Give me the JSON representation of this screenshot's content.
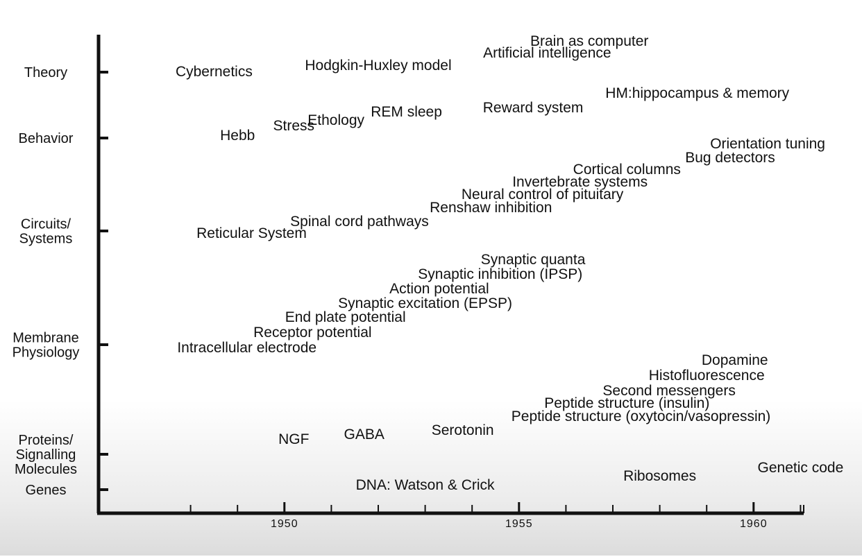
{
  "chart_data": {
    "type": "scatter",
    "title": "",
    "xlabel": "",
    "ylabel": "",
    "xlim": [
      1947,
      1962
    ],
    "x_tick_labels": [
      {
        "value": 1950,
        "label": "1950"
      },
      {
        "value": 1955,
        "label": "1955"
      },
      {
        "value": 1960,
        "label": "1960"
      }
    ],
    "y_categories": [
      {
        "id": "theory",
        "lines": [
          "Theory"
        ]
      },
      {
        "id": "behavior",
        "lines": [
          "Behavior"
        ]
      },
      {
        "id": "circuits",
        "lines": [
          "Circuits/",
          "Systems"
        ]
      },
      {
        "id": "membrane",
        "lines": [
          "Membrane",
          "Physiology"
        ]
      },
      {
        "id": "proteins",
        "lines": [
          "Proteins/",
          "Signalling",
          "Molecules"
        ]
      },
      {
        "id": "genes",
        "lines": [
          "Genes"
        ]
      }
    ],
    "events": [
      {
        "label": "Cybernetics",
        "category": "theory",
        "year": 1948.5
      },
      {
        "label": "Hodgkin-Huxley model",
        "category": "theory",
        "year": 1952.0
      },
      {
        "label": "Artificial intelligence",
        "category": "theory",
        "year": 1955.6
      },
      {
        "label": "Brain as computer",
        "category": "theory",
        "year": 1956.5
      },
      {
        "label": "HM:hippocampus & memory",
        "category": "theory",
        "year": 1958.8
      },
      {
        "label": "Hebb",
        "category": "behavior",
        "year": 1949.0
      },
      {
        "label": "Stress",
        "category": "behavior",
        "year": 1950.2
      },
      {
        "label": "Ethology",
        "category": "behavior",
        "year": 1951.1
      },
      {
        "label": "REM sleep",
        "category": "behavior",
        "year": 1952.6
      },
      {
        "label": "Reward system",
        "category": "behavior",
        "year": 1955.3
      },
      {
        "label": "Reticular System",
        "category": "circuits",
        "year": 1949.3
      },
      {
        "label": "Spinal cord pathways",
        "category": "circuits",
        "year": 1951.6
      },
      {
        "label": "Renshaw inhibition",
        "category": "circuits",
        "year": 1954.4
      },
      {
        "label": "Neural control of pituitary",
        "category": "circuits",
        "year": 1955.5
      },
      {
        "label": "Invertebrate systems",
        "category": "circuits",
        "year": 1956.3
      },
      {
        "label": "Cortical columns",
        "category": "circuits",
        "year": 1957.3
      },
      {
        "label": "Bug detectors",
        "category": "circuits",
        "year": 1959.5
      },
      {
        "label": "Orientation tuning",
        "category": "circuits",
        "year": 1960.3
      },
      {
        "label": "Intracellular electrode",
        "category": "membrane",
        "year": 1949.2
      },
      {
        "label": "Receptor potential",
        "category": "membrane",
        "year": 1950.6
      },
      {
        "label": "End plate potential",
        "category": "membrane",
        "year": 1951.3
      },
      {
        "label": "Synaptic excitation (EPSP)",
        "category": "membrane",
        "year": 1953.0
      },
      {
        "label": "Action potential",
        "category": "membrane",
        "year": 1953.3
      },
      {
        "label": "Synaptic inhibition (IPSP)",
        "category": "membrane",
        "year": 1954.6
      },
      {
        "label": "Synaptic quanta",
        "category": "membrane",
        "year": 1955.3
      },
      {
        "label": "NGF",
        "category": "proteins",
        "year": 1950.2
      },
      {
        "label": "GABA",
        "category": "proteins",
        "year": 1951.7
      },
      {
        "label": "Serotonin",
        "category": "proteins",
        "year": 1953.8
      },
      {
        "label": "Peptide structure (oxytocin/vasopressin)",
        "category": "proteins",
        "year": 1957.6
      },
      {
        "label": "Peptide structure (insulin)",
        "category": "proteins",
        "year": 1957.3
      },
      {
        "label": "Second messengers",
        "category": "proteins",
        "year": 1958.2
      },
      {
        "label": "Histofluorescence",
        "category": "proteins",
        "year": 1959.0
      },
      {
        "label": "Dopamine",
        "category": "proteins",
        "year": 1959.6
      },
      {
        "label": "DNA: Watson & Crick",
        "category": "genes",
        "year": 1953.0
      },
      {
        "label": "Ribosomes",
        "category": "genes",
        "year": 1958.0
      },
      {
        "label": "Genetic code",
        "category": "genes",
        "year": 1961.0
      }
    ]
  }
}
